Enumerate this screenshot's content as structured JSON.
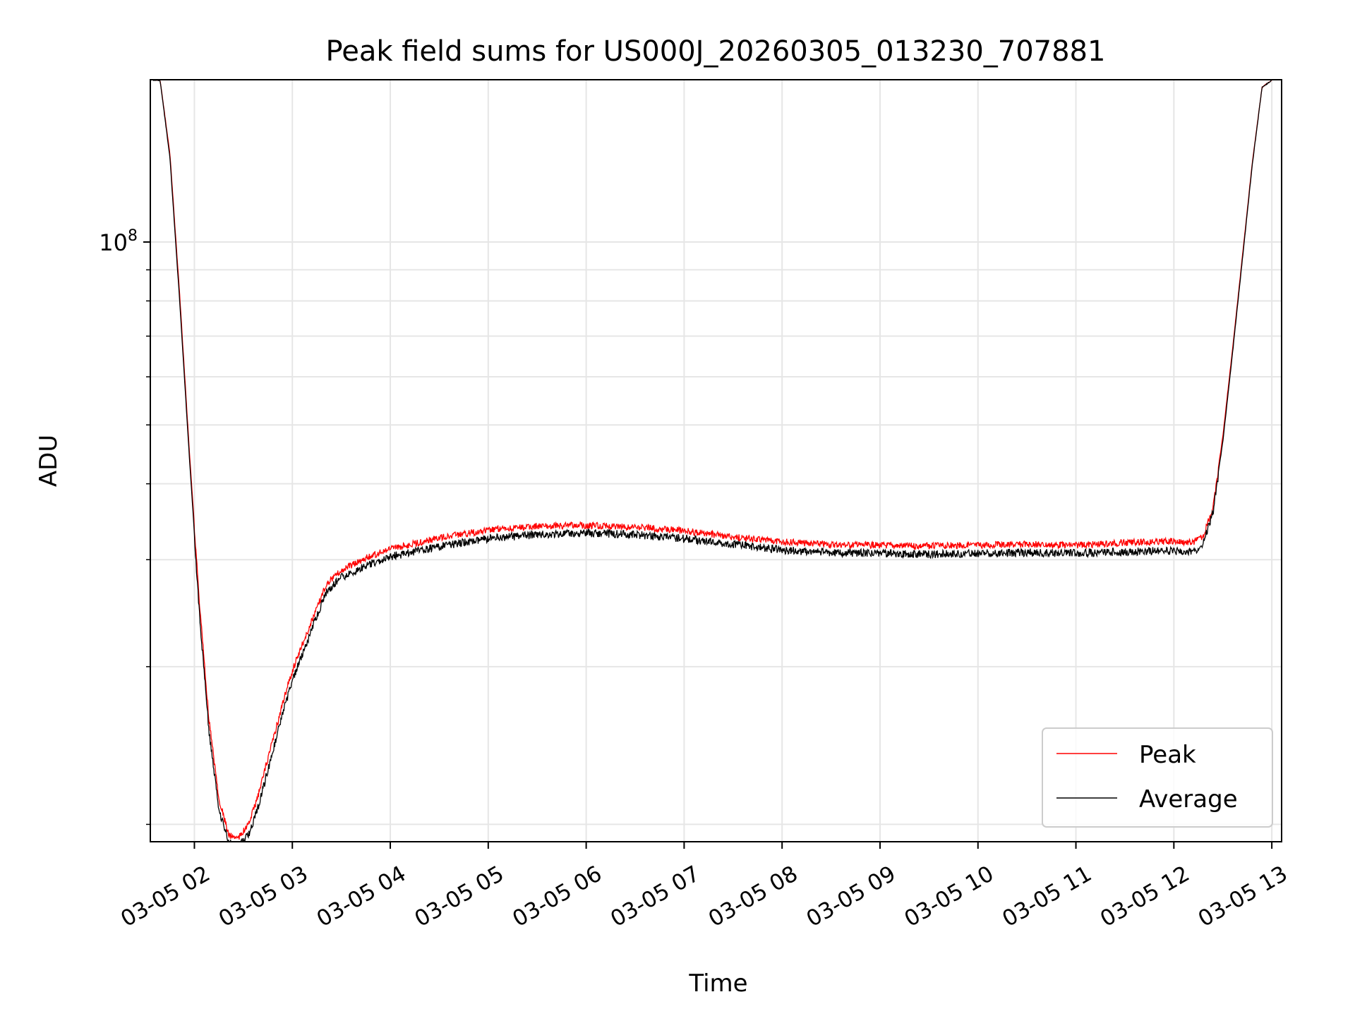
{
  "chart_data": {
    "type": "line",
    "title": "Peak field sums for US000J_20260305_013230_707881",
    "xlabel": "Time",
    "ylabel": "ADU",
    "yscale": "log",
    "ylim": [
      10300000,
      185000000
    ],
    "xlim": [
      1.55,
      13.1
    ],
    "grid": true,
    "xticks": [
      {
        "value": 2,
        "label": "03-05 02"
      },
      {
        "value": 3,
        "label": "03-05 03"
      },
      {
        "value": 4,
        "label": "03-05 04"
      },
      {
        "value": 5,
        "label": "03-05 05"
      },
      {
        "value": 6,
        "label": "03-05 06"
      },
      {
        "value": 7,
        "label": "03-05 07"
      },
      {
        "value": 8,
        "label": "03-05 08"
      },
      {
        "value": 9,
        "label": "03-05 09"
      },
      {
        "value": 10,
        "label": "03-05 10"
      },
      {
        "value": 11,
        "label": "03-05 11"
      },
      {
        "value": 12,
        "label": "03-05 12"
      },
      {
        "value": 13,
        "label": "03-05 13"
      }
    ],
    "yticks_major": [
      {
        "value": 100000000,
        "base": "10",
        "exp": "8"
      }
    ],
    "yticks_minor": [
      11000000,
      20000000,
      30000000,
      40000000,
      50000000,
      60000000,
      70000000,
      80000000,
      90000000,
      200000000
    ],
    "legend_position": "lower-right",
    "series": [
      {
        "name": "Peak",
        "color": "#ff0000",
        "noise_amp": 0.025,
        "x": [
          1.58,
          1.65,
          1.75,
          1.85,
          1.95,
          2.05,
          2.15,
          2.25,
          2.35,
          2.45,
          2.55,
          2.65,
          2.75,
          2.85,
          2.95,
          3.05,
          3.15,
          3.25,
          3.35,
          3.5,
          3.75,
          4.0,
          4.5,
          5.0,
          5.5,
          6.0,
          6.5,
          7.0,
          7.5,
          8.0,
          8.5,
          9.0,
          9.5,
          10.0,
          10.5,
          11.0,
          11.5,
          12.0,
          12.2,
          12.3,
          12.4,
          12.5,
          12.6,
          12.7,
          12.8,
          12.9,
          13.0
        ],
        "y": [
          185000000,
          185000000,
          140000000,
          82000000,
          45000000,
          26000000,
          16500000,
          12300000,
          10700000,
          10600000,
          11100000,
          12400000,
          14300000,
          16400000,
          18800000,
          21000000,
          23000000,
          25300000,
          27800000,
          29200000,
          30600000,
          31600000,
          33000000,
          34000000,
          34500000,
          34600000,
          34400000,
          33900000,
          33100000,
          32500000,
          32200000,
          32100000,
          32000000,
          32100000,
          32200000,
          32100000,
          32400000,
          32600000,
          32400000,
          33200000,
          37000000,
          48000000,
          67000000,
          95000000,
          135000000,
          180000000,
          185000000
        ]
      },
      {
        "name": "Average",
        "color": "#000000",
        "noise_amp": 0.03,
        "x": [
          1.58,
          1.65,
          1.75,
          1.85,
          1.95,
          2.05,
          2.15,
          2.25,
          2.35,
          2.45,
          2.55,
          2.65,
          2.75,
          2.85,
          2.95,
          3.05,
          3.15,
          3.25,
          3.35,
          3.5,
          3.75,
          4.0,
          4.5,
          5.0,
          5.5,
          6.0,
          6.5,
          7.0,
          7.5,
          8.0,
          8.5,
          9.0,
          9.5,
          10.0,
          10.5,
          11.0,
          11.5,
          12.0,
          12.2,
          12.3,
          12.4,
          12.5,
          12.6,
          12.7,
          12.8,
          12.9,
          13.0
        ],
        "y": [
          185000000,
          185000000,
          138000000,
          80000000,
          44000000,
          25000000,
          15800000,
          11800000,
          10400000,
          10300000,
          10700000,
          11900000,
          13700000,
          15800000,
          18100000,
          20300000,
          22300000,
          24600000,
          27000000,
          28500000,
          29800000,
          30800000,
          32000000,
          33000000,
          33500000,
          33700000,
          33500000,
          33000000,
          32300000,
          31600000,
          31300000,
          31200000,
          31100000,
          31200000,
          31300000,
          31200000,
          31400000,
          31500000,
          31300000,
          32500000,
          36500000,
          47000000,
          66000000,
          94000000,
          134000000,
          180000000,
          185000000
        ]
      }
    ]
  }
}
